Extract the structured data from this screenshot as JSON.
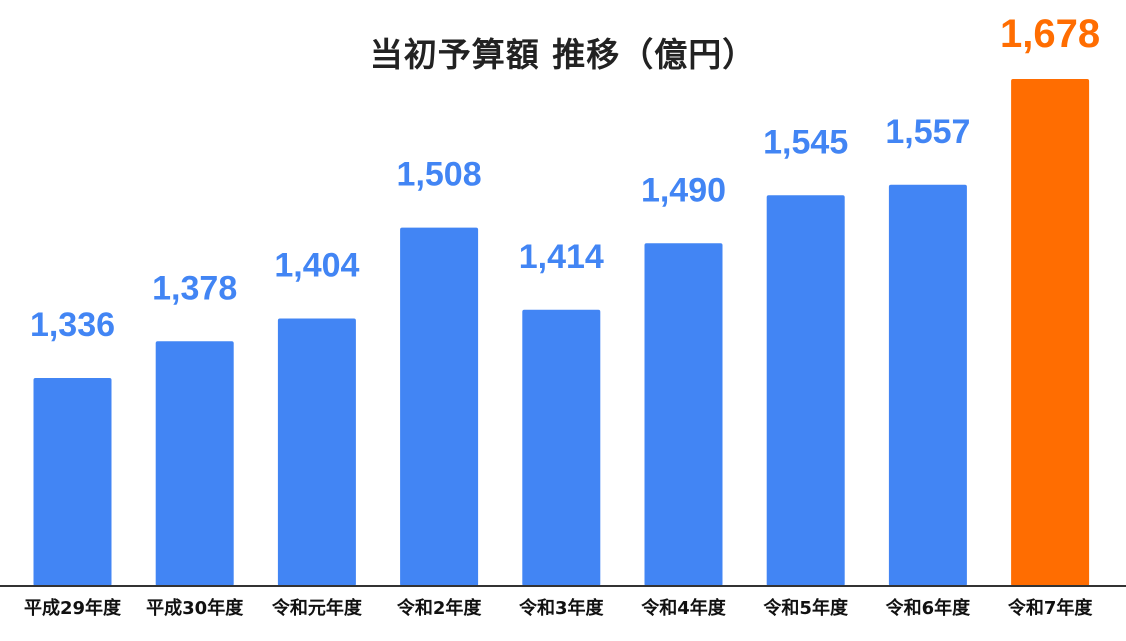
{
  "chart_data": {
    "type": "bar",
    "title": "当初予算額 推移（億円）",
    "categories": [
      "平成29年度",
      "平成30年度",
      "令和元年度",
      "令和2年度",
      "令和3年度",
      "令和4年度",
      "令和5年度",
      "令和6年度",
      "令和7年度"
    ],
    "values": [
      1336,
      1378,
      1404,
      1508,
      1414,
      1490,
      1545,
      1557,
      1678
    ],
    "value_labels": [
      "1,336",
      "1,378",
      "1,404",
      "1,508",
      "1,414",
      "1,490",
      "1,545",
      "1,557",
      "1,678"
    ],
    "highlight_index": 8,
    "xlabel": "",
    "ylabel": "",
    "grid": false,
    "legend": "none"
  },
  "colors": {
    "bar": "#4285f4",
    "highlight": "#ff6d01",
    "axis": "#333333",
    "title": "#222222"
  }
}
